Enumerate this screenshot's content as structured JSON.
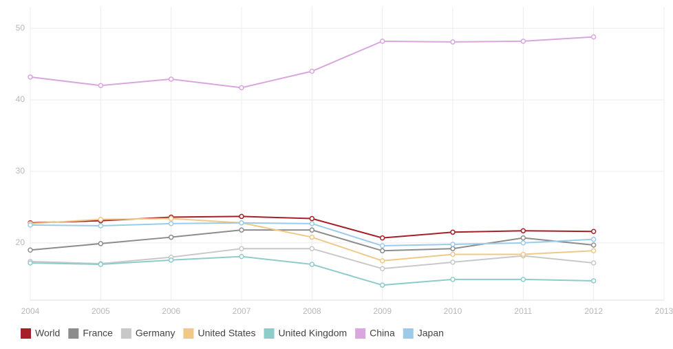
{
  "chart_data": {
    "type": "line",
    "x": [
      2004,
      2005,
      2006,
      2007,
      2008,
      2009,
      2010,
      2011,
      2012
    ],
    "xlim": [
      2004,
      2013
    ],
    "xticks": [
      2004,
      2005,
      2006,
      2007,
      2008,
      2009,
      2010,
      2011,
      2012,
      2013
    ],
    "ylim": [
      12,
      53
    ],
    "yticks": [
      20,
      30,
      40,
      50
    ],
    "grid": true,
    "series": [
      {
        "name": "World",
        "color": "#a51f26",
        "values": [
          22.8,
          23.1,
          23.6,
          23.7,
          23.4,
          20.7,
          21.5,
          21.7,
          21.6
        ]
      },
      {
        "name": "France",
        "color": "#8c8c8c",
        "values": [
          19.0,
          19.9,
          20.8,
          21.8,
          21.8,
          18.9,
          19.2,
          20.7,
          19.7
        ]
      },
      {
        "name": "Germany",
        "color": "#c8c8c8",
        "values": [
          17.4,
          17.1,
          18.0,
          19.2,
          19.2,
          16.4,
          17.3,
          18.2,
          17.2
        ]
      },
      {
        "name": "United States",
        "color": "#f0c987",
        "values": [
          22.7,
          23.3,
          23.4,
          22.8,
          20.8,
          17.5,
          18.4,
          18.4,
          18.9
        ]
      },
      {
        "name": "United Kingdom",
        "color": "#8ecccc",
        "values": [
          17.2,
          17.0,
          17.6,
          18.1,
          17.0,
          14.1,
          14.9,
          14.9,
          14.7
        ]
      },
      {
        "name": "China",
        "color": "#d9a6de",
        "values": [
          43.2,
          42.0,
          42.9,
          41.7,
          44.0,
          48.2,
          48.1,
          48.2,
          48.8
        ]
      },
      {
        "name": "Japan",
        "color": "#9ccbea",
        "values": [
          22.5,
          22.4,
          22.7,
          22.8,
          22.7,
          19.6,
          19.8,
          20.0,
          20.5
        ]
      }
    ]
  }
}
